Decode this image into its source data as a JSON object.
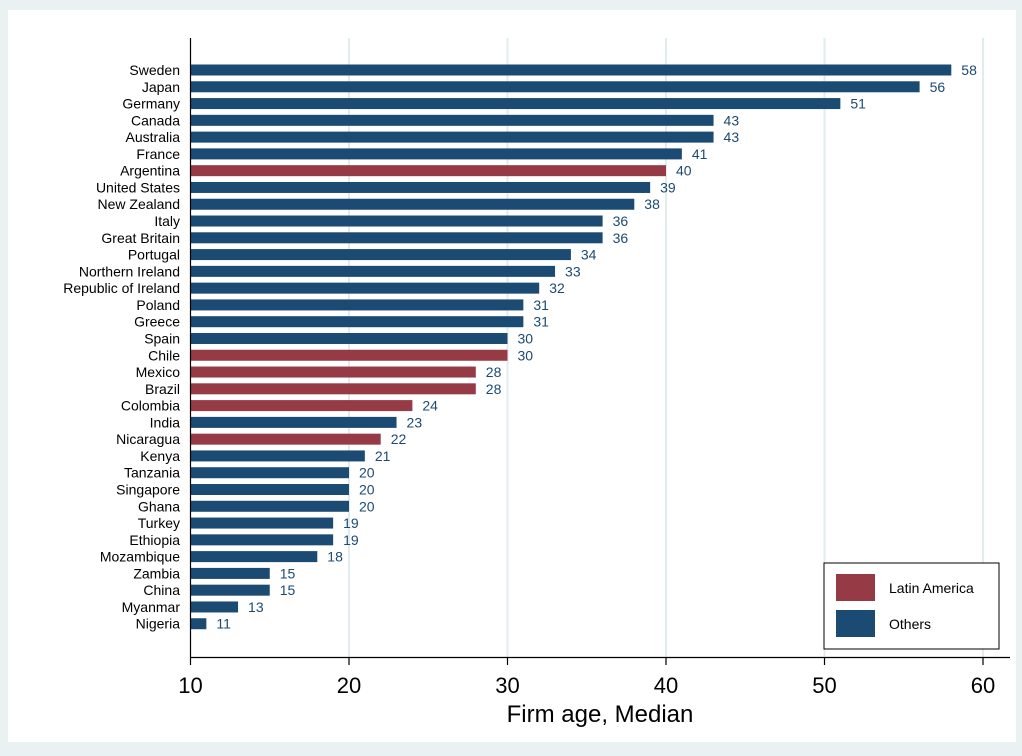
{
  "chart_data": {
    "type": "bar",
    "orientation": "horizontal",
    "categories": [
      "Sweden",
      "Japan",
      "Germany",
      "Canada",
      "Australia",
      "France",
      "Argentina",
      "United States",
      "New Zealand",
      "Italy",
      "Great Britain",
      "Portugal",
      "Northern Ireland",
      "Republic of Ireland",
      "Poland",
      "Greece",
      "Spain",
      "Chile",
      "Mexico",
      "Brazil",
      "Colombia",
      "India",
      "Nicaragua",
      "Kenya",
      "Tanzania",
      "Singapore",
      "Ghana",
      "Turkey",
      "Ethiopia",
      "Mozambique",
      "Zambia",
      "China",
      "Myanmar",
      "Nigeria"
    ],
    "values": [
      58,
      56,
      51,
      43,
      43,
      41,
      40,
      39,
      38,
      36,
      36,
      34,
      33,
      32,
      31,
      31,
      30,
      30,
      28,
      28,
      24,
      23,
      22,
      21,
      20,
      20,
      20,
      19,
      19,
      18,
      15,
      15,
      13,
      11
    ],
    "groups": [
      "Others",
      "Others",
      "Others",
      "Others",
      "Others",
      "Others",
      "Latin America",
      "Others",
      "Others",
      "Others",
      "Others",
      "Others",
      "Others",
      "Others",
      "Others",
      "Others",
      "Others",
      "Latin America",
      "Latin America",
      "Latin America",
      "Latin America",
      "Others",
      "Latin America",
      "Others",
      "Others",
      "Others",
      "Others",
      "Others",
      "Others",
      "Others",
      "Others",
      "Others",
      "Others",
      "Others"
    ],
    "data_labels": [
      "58",
      "56",
      "51",
      "43",
      "43",
      "41",
      "40",
      "39",
      "38",
      "36",
      "36",
      "34",
      "33",
      "32",
      "31",
      "31",
      "30",
      "30",
      "28",
      "28",
      "24",
      "23",
      "22",
      "21",
      "20",
      "20",
      "20",
      "19",
      "19",
      "18",
      "15",
      "15",
      "13",
      "11"
    ],
    "xlabel": "Firm age, Median",
    "ylabel": "",
    "xlim": [
      10,
      61.5
    ],
    "xticks": [
      10,
      20,
      30,
      40,
      50,
      60
    ],
    "xtick_labels": [
      "10",
      "20",
      "30",
      "40",
      "50",
      "60"
    ],
    "grid": true,
    "legend": {
      "position": "bottom-right",
      "entries": [
        {
          "label": "Latin America",
          "color": "#963a45"
        },
        {
          "label": "Others",
          "color": "#1b4a72"
        }
      ]
    },
    "colors": {
      "Latin America": "#963a45",
      "Others": "#1b4a72",
      "label_text": "#1b4a72",
      "background": "#eaf1f3",
      "plot_background": "#ffffff",
      "grid": "#e1ecef"
    }
  }
}
